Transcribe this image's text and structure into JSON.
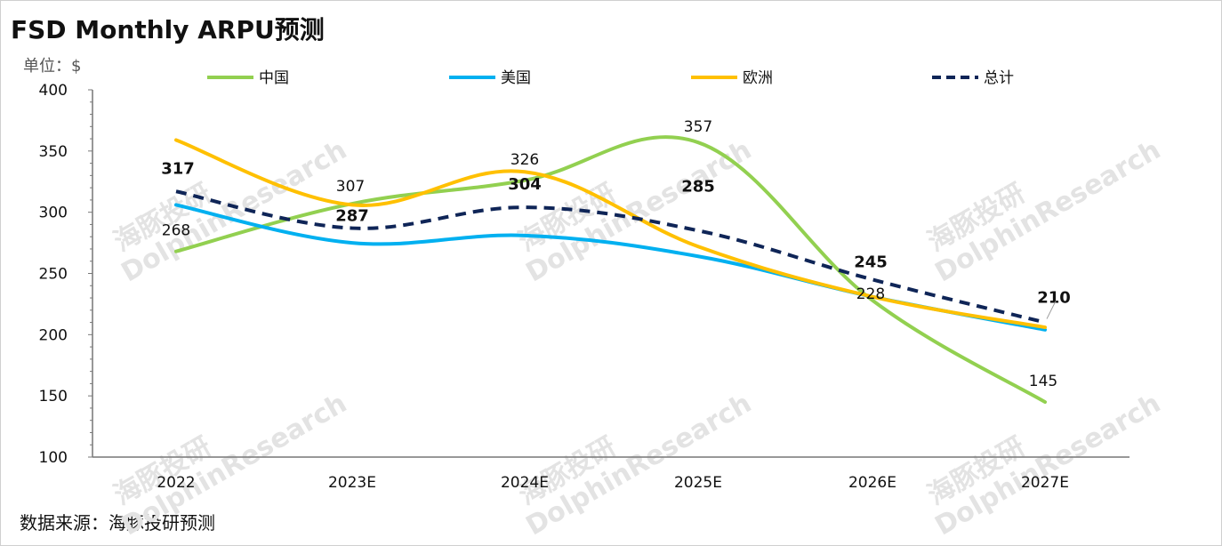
{
  "title": "FSD Monthly ARPU预测",
  "unit_label": "单位：$",
  "source": "数据来源：海豚投研预测",
  "watermark": {
    "cn": "海豚投研",
    "en": "DolphinResearch"
  },
  "chart_data": {
    "type": "line",
    "categories": [
      "2022",
      "2023E",
      "2024E",
      "2025E",
      "2026E",
      "2027E"
    ],
    "ylim": [
      100,
      400
    ],
    "yticks": [
      "400",
      "350",
      "300",
      "250",
      "200",
      "150",
      "100"
    ],
    "legend_position": "top",
    "series": [
      {
        "name": "中国",
        "color": "#92d050",
        "dashed": false,
        "bold_labels": false,
        "values": [
          268,
          307,
          326,
          357,
          228,
          145
        ],
        "labels": [
          "268",
          "307",
          "326",
          "357",
          "228",
          "145"
        ]
      },
      {
        "name": "美国",
        "color": "#00b0f0",
        "dashed": false,
        "bold_labels": false,
        "values": [
          306,
          275,
          281,
          264,
          231,
          204
        ],
        "labels": []
      },
      {
        "name": "欧洲",
        "color": "#ffc000",
        "dashed": false,
        "bold_labels": false,
        "values": [
          359,
          306,
          333,
          272,
          231,
          206
        ],
        "labels": []
      },
      {
        "name": "总计",
        "color": "#0f2557",
        "dashed": true,
        "bold_labels": true,
        "values": [
          317,
          287,
          304,
          285,
          245,
          210
        ],
        "labels": [
          "317",
          "287",
          "304",
          "285",
          "245",
          "210"
        ]
      }
    ]
  }
}
